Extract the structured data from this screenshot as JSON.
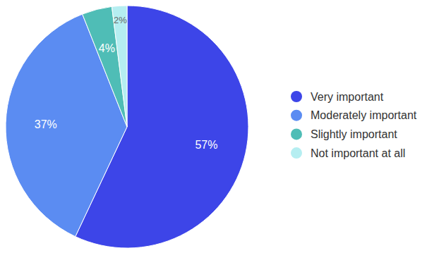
{
  "chart_data": {
    "type": "pie",
    "categories": [
      "Very important",
      "Moderately important",
      "Slightly important",
      "Not important at all"
    ],
    "values": [
      57,
      37,
      4,
      2
    ],
    "value_labels": [
      "57%",
      "37%",
      "4%",
      "2%"
    ],
    "colors": [
      "#3d45e8",
      "#5b8cf2",
      "#4fbdb6",
      "#b5eef1"
    ],
    "data_labels": true,
    "legend": "right"
  }
}
